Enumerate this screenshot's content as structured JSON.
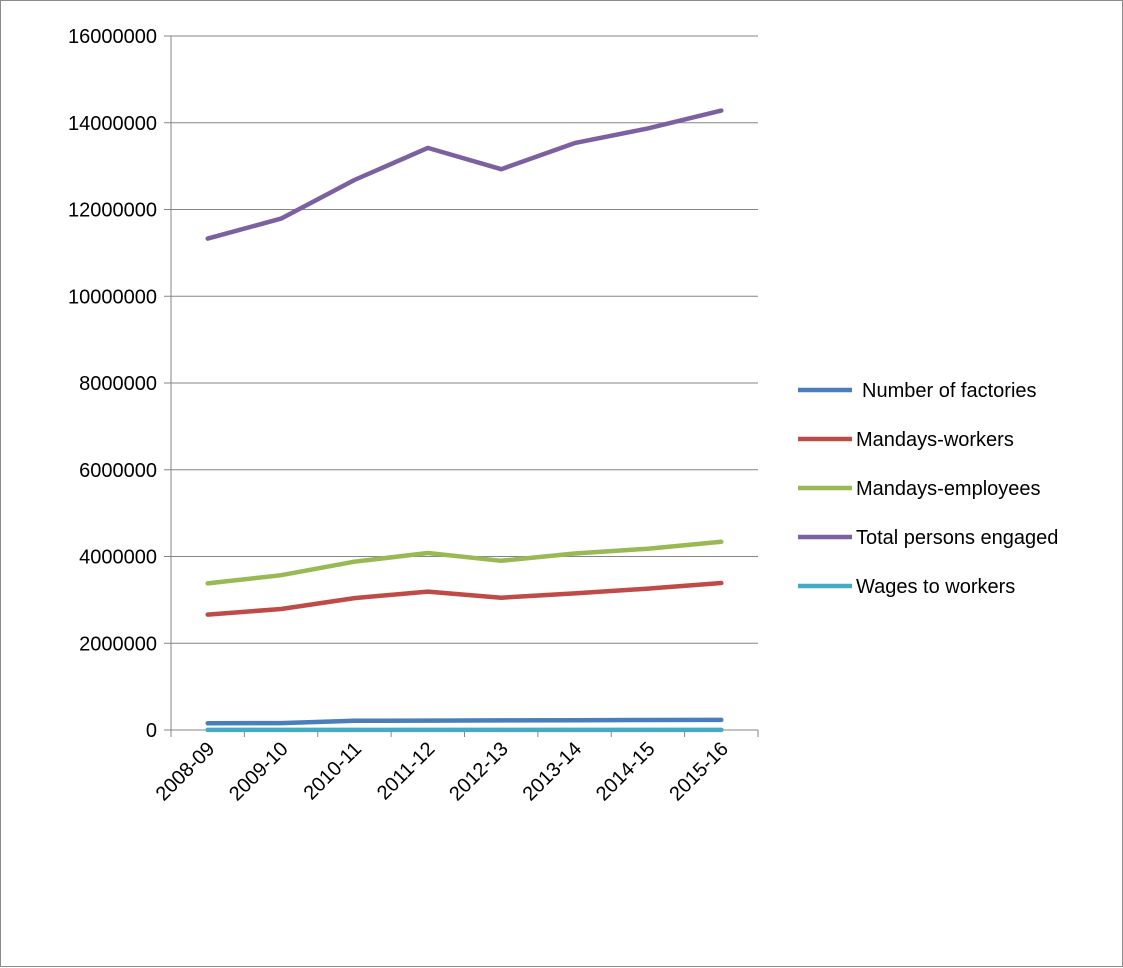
{
  "chart_data": {
    "type": "line",
    "title": "",
    "xlabel": "",
    "ylabel": "",
    "categories": [
      "2008-09",
      "2009-10",
      "2010-11",
      "2011-12",
      "2012-13",
      "2013-14",
      "2014-15",
      "2015-16"
    ],
    "ylim": [
      0,
      16000000
    ],
    "yticks": [
      0,
      2000000,
      4000000,
      6000000,
      8000000,
      10000000,
      12000000,
      14000000,
      16000000
    ],
    "ytick_labels": [
      "0",
      "2000000",
      "4000000",
      "6000000",
      "8000000",
      "10000000",
      "12000000",
      "14000000",
      "16000000"
    ],
    "grid": true,
    "legend_position": "right",
    "series": [
      {
        "name": "Number of factories",
        "color": "#4a7ebb",
        "values": [
          155000,
          158000,
          211000,
          217000,
          222000,
          224000,
          231000,
          234000
        ]
      },
      {
        "name": "Mandays-workers",
        "color": "#be4b48",
        "values": [
          2660000,
          2790000,
          3040000,
          3190000,
          3050000,
          3150000,
          3260000,
          3390000
        ]
      },
      {
        "name": "Mandays-employees",
        "color": "#98b954",
        "values": [
          3380000,
          3570000,
          3880000,
          4080000,
          3900000,
          4070000,
          4180000,
          4340000
        ]
      },
      {
        "name": "Total persons engaged",
        "color": "#7d60a0",
        "values": [
          11330000,
          11790000,
          12680000,
          13420000,
          12930000,
          13530000,
          13870000,
          14280000
        ]
      },
      {
        "name": "Wages to workers",
        "color": "#46aac5",
        "values": [
          1200,
          1400,
          1600,
          1800,
          1900,
          2100,
          2300,
          2500
        ]
      }
    ]
  }
}
